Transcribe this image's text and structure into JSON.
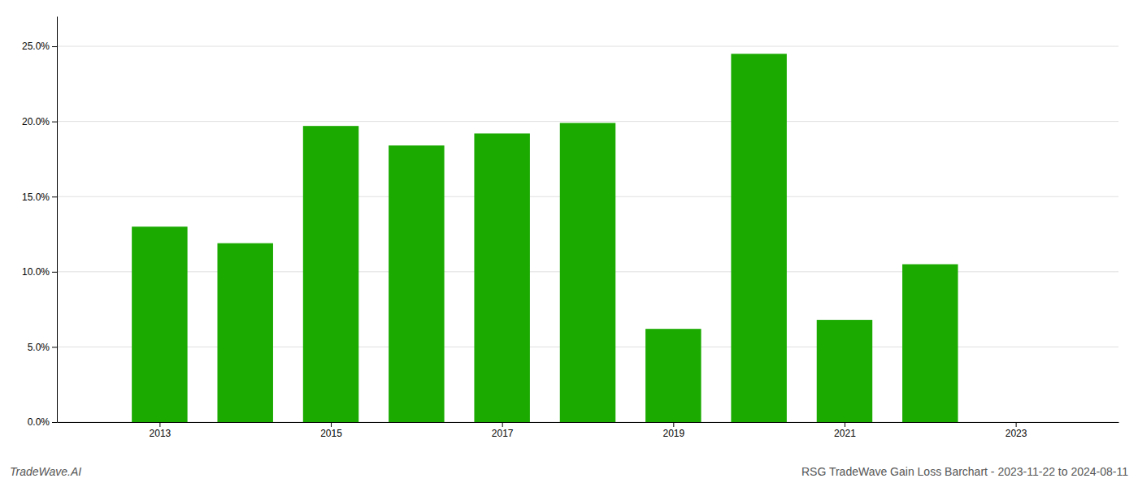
{
  "chart_data": {
    "type": "bar",
    "title": "RSG TradeWave Gain Loss Barchart - 2023-11-22 to 2024-08-11",
    "annotations": [
      "TradeWave.AI"
    ],
    "x": [
      2013,
      2014,
      2015,
      2016,
      2017,
      2018,
      2019,
      2020,
      2021,
      2022
    ],
    "values": [
      0.13,
      0.119,
      0.197,
      0.184,
      0.192,
      0.199,
      0.062,
      0.245,
      0.068,
      0.105
    ],
    "color": "#1aaa00",
    "xlim": [
      2011.8,
      2024.2
    ],
    "xticks": [
      2013,
      2015,
      2017,
      2019,
      2021,
      2023
    ],
    "ylim": [
      0,
      0.27
    ],
    "yticks": [
      {
        "value": 0.0,
        "label": "0.0%"
      },
      {
        "value": 0.05,
        "label": "5.0%"
      },
      {
        "value": 0.1,
        "label": "10.0%"
      },
      {
        "value": 0.15,
        "label": "15.0%"
      },
      {
        "value": 0.2,
        "label": "20.0%"
      },
      {
        "value": 0.25,
        "label": "25.0%"
      }
    ],
    "grid": true
  }
}
